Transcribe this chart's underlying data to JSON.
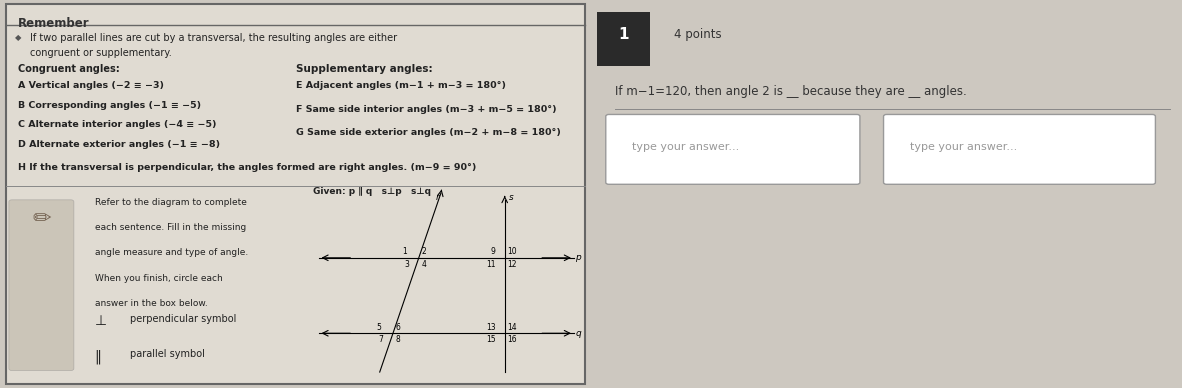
{
  "bg_color": "#cdc8c0",
  "left_panel_bg": "#e0dbd2",
  "right_panel_bg": "#d8d4cc",
  "remember_title": "Remember",
  "intro_text": "If two parallel lines are cut by a transversal, the resulting angles are either\ncongruent or supplementary.",
  "congruent_label": "Congruent angles:",
  "supplementary_label": "Supplementary angles:",
  "congruent_items": [
    "A Vertical angles (−2 ≡ −3)",
    "B Corresponding angles (−1 ≡ −5)",
    "C Alternate interior angles (−4 ≡ −5)",
    "D Alternate exterior angles (−1 ≡ −8)"
  ],
  "supplementary_items": [
    "E Adjacent angles (m−1 + m−3 = 180°)",
    "F Same side interior angles (m−3 + m−5 = 180°)",
    "G Same side exterior angles (m−2 + m−8 = 180°)"
  ],
  "h_text": "H If the transversal is perpendicular, the angles formed are right angles. (m−9 = 90°)",
  "bottom_left_text": "Refer to the diagram to complete\neach sentence. Fill in the missing\nangle measure and type of angle.\nWhen you finish, circle each\nanswer in the box below.",
  "perp_symbol_label": "perpendicular symbol",
  "parallel_symbol_label": "parallel symbol",
  "given_text": "Given: p ∥ q   s⊥p   s⊥q",
  "question_number": "1",
  "points_text": "4 points",
  "question_text": "If m−1=120, then angle 2 is __ because they are __ angles.",
  "answer_box1": "type your answer...",
  "answer_box2": "type your answer..."
}
